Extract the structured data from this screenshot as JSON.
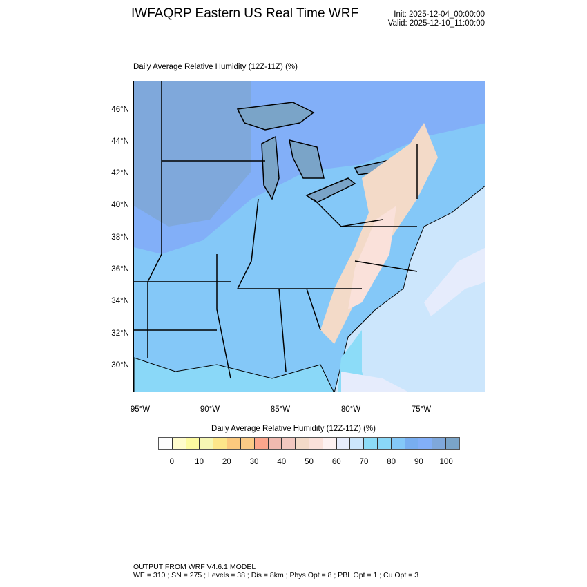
{
  "header": {
    "title": "IWFAQRP Eastern US Real Time WRF",
    "init": "Init: 2025-12-04_00:00:00",
    "valid": "Valid: 2025-12-10_11:00:00"
  },
  "plot": {
    "subtitle": "Daily Average Relative Humidity (12Z-11Z)   (%)",
    "lat_labels": [
      "46°N",
      "44°N",
      "42°N",
      "40°N",
      "38°N",
      "36°N",
      "34°N",
      "32°N",
      "30°N"
    ],
    "lon_labels": [
      "95°W",
      "90°W",
      "85°W",
      "80°W",
      "75°W"
    ]
  },
  "colorbar": {
    "title": "Daily Average Relative Humidity (12Z-11Z)  (%)",
    "labels": [
      "0",
      "10",
      "20",
      "30",
      "40",
      "50",
      "60",
      "70",
      "80",
      "90",
      "100"
    ],
    "colors": [
      "#fdfdfd",
      "#fffccc",
      "#fdfba0",
      "#f6f7b4",
      "#fde68a",
      "#fbc97e",
      "#fbcb86",
      "#fca68c",
      "#f0bab0",
      "#f2c8c0",
      "#f3dac8",
      "#fae1da",
      "#fdf1f1",
      "#e6ecfc",
      "#cce6fc",
      "#8cdcf8",
      "#8ad8f8",
      "#84c8f8",
      "#78aef0",
      "#82aff8",
      "#7fa8db",
      "#7aa4c8"
    ]
  },
  "footer": {
    "line1": "OUTPUT FROM WRF V4.6.1 MODEL",
    "line2": "WE = 310 ; SN = 275 ; Levels = 38 ; Dis = 8km ; Phys Opt = 8 ; PBL Opt = 1 ; Cu Opt = 3"
  }
}
